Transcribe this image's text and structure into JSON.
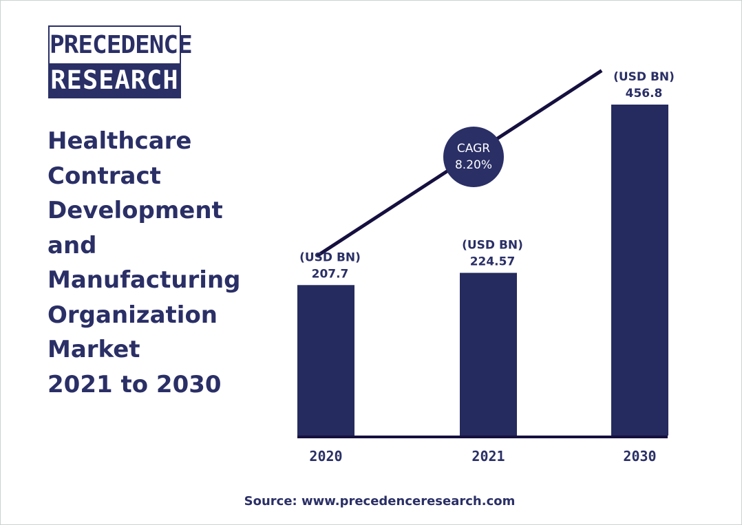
{
  "logo": {
    "line1": "PRECEDENCE",
    "line2": "RESEARCH"
  },
  "title_lines": [
    "Healthcare",
    "Contract",
    "Development",
    "and",
    "Manufacturing",
    "Organization",
    "Market",
    "2021 to 2030"
  ],
  "cagr": {
    "label": "CAGR",
    "value": "8.20%"
  },
  "source": "Source: www.precedenceresearch.com",
  "colors": {
    "bar": "#252b5e",
    "text": "#2a2f66",
    "line": "#15103f",
    "circle": "#2a2f66"
  },
  "chart_data": {
    "type": "bar",
    "categories": [
      "2020",
      "2021",
      "2030"
    ],
    "values": [
      207.7,
      224.57,
      456.8
    ],
    "value_labels": [
      "207.7",
      "224.57",
      "456.8"
    ],
    "unit_label": "(USD BN)",
    "title": "Healthcare Contract Development and Manufacturing Organization Market 2021 to 2030",
    "xlabel": "",
    "ylabel": "",
    "grid": false,
    "legend": "none"
  }
}
